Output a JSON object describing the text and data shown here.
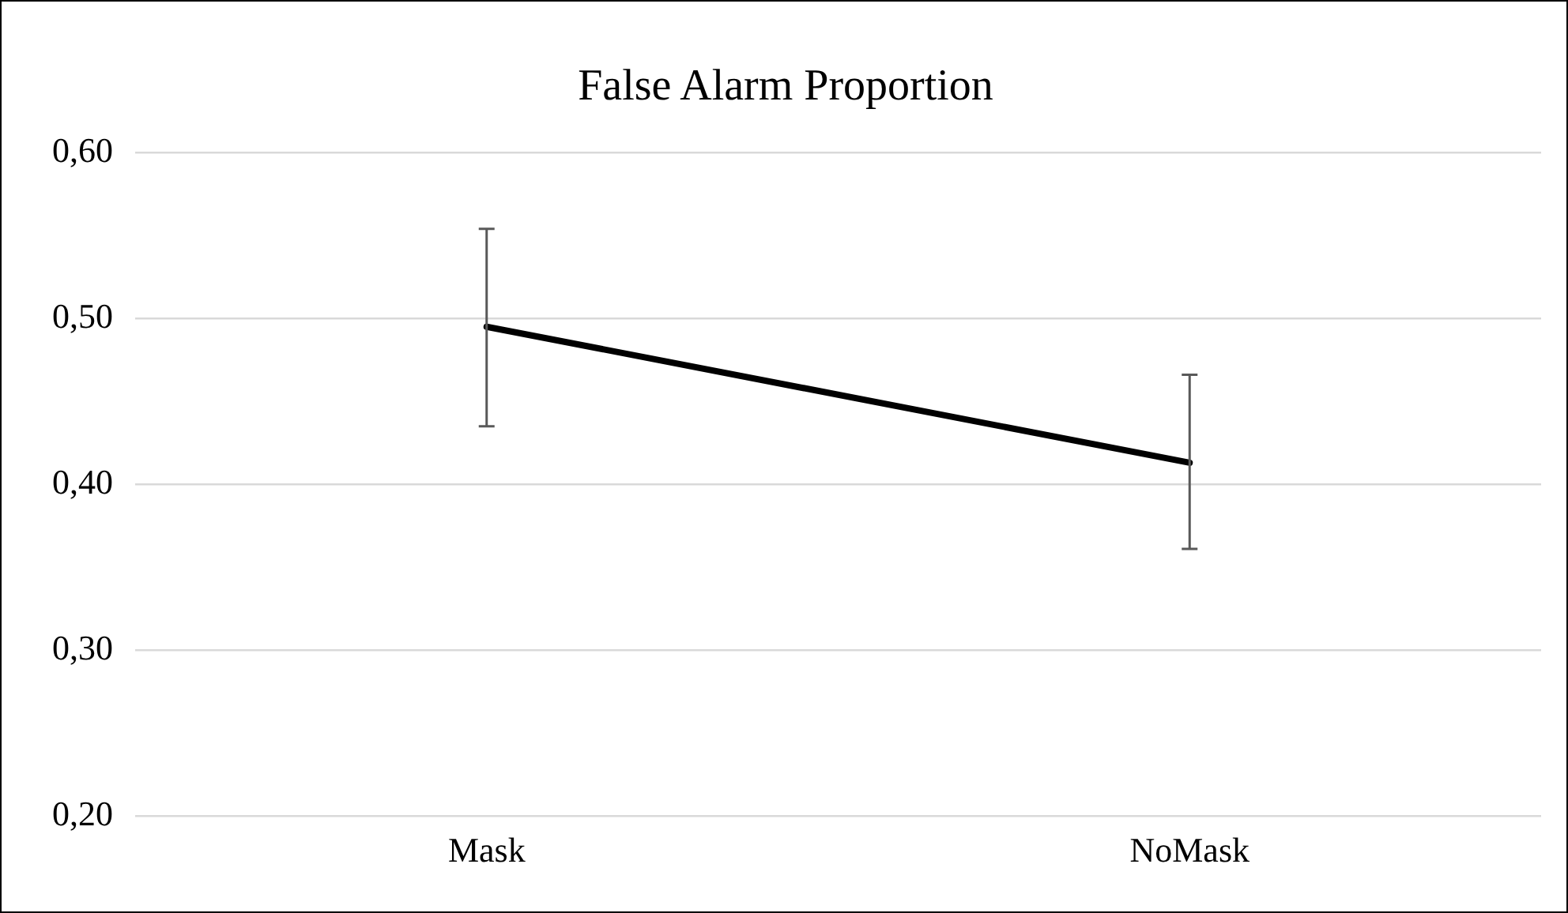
{
  "chart_data": {
    "type": "line",
    "title": "False Alarm Proportion",
    "categories": [
      "Mask",
      "NoMask"
    ],
    "series": [
      {
        "color": "#000000",
        "values": [
          0.495,
          0.413
        ],
        "errors": [
          [
            0.435,
            0.554
          ],
          [
            0.361,
            0.466
          ]
        ]
      }
    ],
    "ylim": [
      0.2,
      0.6
    ],
    "yticks": [
      {
        "value": 0.2,
        "label": "0,20"
      },
      {
        "value": 0.3,
        "label": "0,30"
      },
      {
        "value": 0.4,
        "label": "0,40"
      },
      {
        "value": 0.5,
        "label": "0,50"
      },
      {
        "value": 0.6,
        "label": "0,60"
      }
    ],
    "grid": "y",
    "legend": false,
    "marker": "none",
    "line_style": "solid"
  }
}
